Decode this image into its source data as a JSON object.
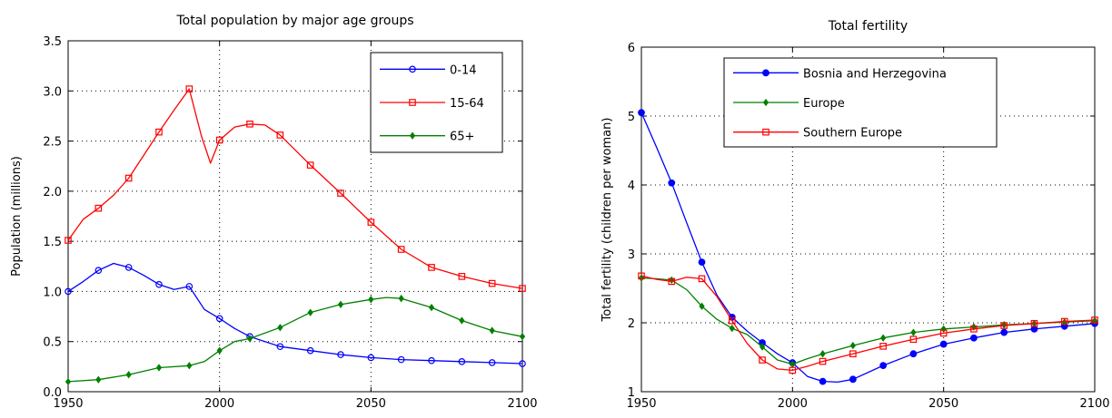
{
  "chart_data": [
    {
      "type": "line",
      "title": "Total population by major age groups",
      "ylabel": "Population (millions)",
      "xlabel": "",
      "xlim": [
        1950,
        2100
      ],
      "ylim": [
        0.0,
        3.5
      ],
      "xticks": [
        1950,
        2000,
        2050,
        2100
      ],
      "xtick_labels": [
        "1950",
        "2000",
        "2050",
        "2100"
      ],
      "yticks": [
        0,
        0.5,
        1.0,
        1.5,
        2.0,
        2.5,
        3.0,
        3.5
      ],
      "ytick_labels": [
        "0.0",
        "0.5",
        "1.0",
        "1.5",
        "2.0",
        "2.5",
        "3.0",
        "3.5"
      ],
      "grid": true,
      "legend_position": "top-right",
      "series": [
        {
          "name": "0-14",
          "color": "#0000ff",
          "marker": "circle",
          "x": [
            1950,
            1955,
            1960,
            1965,
            1970,
            1975,
            1980,
            1985,
            1990,
            1995,
            2000,
            2005,
            2010,
            2020,
            2030,
            2040,
            2050,
            2060,
            2070,
            2080,
            2090,
            2100
          ],
          "values": [
            1.0,
            1.1,
            1.21,
            1.28,
            1.24,
            1.16,
            1.07,
            1.02,
            1.05,
            0.82,
            0.73,
            0.63,
            0.55,
            0.45,
            0.41,
            0.37,
            0.34,
            0.32,
            0.31,
            0.3,
            0.29,
            0.28
          ],
          "marker_x": [
            1950,
            1960,
            1970,
            1980,
            1990,
            2000,
            2010,
            2020,
            2030,
            2040,
            2050,
            2060,
            2070,
            2080,
            2090,
            2100
          ]
        },
        {
          "name": "15-64",
          "color": "#ff0000",
          "marker": "square",
          "x": [
            1950,
            1955,
            1960,
            1965,
            1970,
            1975,
            1980,
            1985,
            1990,
            1994,
            1997,
            2000,
            2005,
            2010,
            2015,
            2020,
            2030,
            2040,
            2050,
            2060,
            2070,
            2080,
            2090,
            2100
          ],
          "values": [
            1.51,
            1.72,
            1.83,
            1.96,
            2.13,
            2.36,
            2.59,
            2.81,
            3.02,
            2.55,
            2.28,
            2.51,
            2.64,
            2.67,
            2.66,
            2.56,
            2.26,
            1.98,
            1.69,
            1.42,
            1.24,
            1.15,
            1.08,
            1.03
          ],
          "marker_x": [
            1950,
            1960,
            1970,
            1980,
            1990,
            2000,
            2010,
            2020,
            2030,
            2040,
            2050,
            2060,
            2070,
            2080,
            2090,
            2100
          ]
        },
        {
          "name": "65+",
          "color": "#008000",
          "marker": "diamond",
          "x": [
            1950,
            1960,
            1970,
            1980,
            1990,
            1995,
            2000,
            2005,
            2010,
            2020,
            2030,
            2040,
            2050,
            2055,
            2060,
            2070,
            2080,
            2090,
            2100
          ],
          "values": [
            0.1,
            0.12,
            0.17,
            0.24,
            0.26,
            0.3,
            0.41,
            0.5,
            0.53,
            0.64,
            0.79,
            0.87,
            0.92,
            0.94,
            0.93,
            0.84,
            0.71,
            0.61,
            0.55
          ],
          "marker_x": [
            1950,
            1960,
            1970,
            1980,
            1990,
            2000,
            2010,
            2020,
            2030,
            2040,
            2050,
            2060,
            2070,
            2080,
            2090,
            2100
          ]
        }
      ]
    },
    {
      "type": "line",
      "title": "Total fertility",
      "ylabel": "Total fertility (children per woman)",
      "xlabel": "",
      "xlim": [
        1950,
        2100
      ],
      "ylim": [
        1,
        6
      ],
      "xticks": [
        1950,
        2000,
        2050,
        2100
      ],
      "xtick_labels": [
        "1950",
        "2000",
        "2050",
        "2100"
      ],
      "yticks": [
        1,
        2,
        3,
        4,
        5,
        6
      ],
      "ytick_labels": [
        "1",
        "2",
        "3",
        "4",
        "5",
        "6"
      ],
      "grid": true,
      "legend_position": "top-center",
      "series": [
        {
          "name": "Bosnia and Herzegovina",
          "color": "#0000ff",
          "marker": "filled-circle",
          "x": [
            1950,
            1955,
            1960,
            1965,
            1970,
            1975,
            1980,
            1985,
            1990,
            1995,
            2000,
            2005,
            2010,
            2015,
            2020,
            2030,
            2040,
            2050,
            2060,
            2070,
            2080,
            2090,
            2100
          ],
          "values": [
            5.05,
            4.55,
            4.03,
            3.45,
            2.88,
            2.4,
            2.08,
            1.88,
            1.71,
            1.55,
            1.42,
            1.22,
            1.15,
            1.14,
            1.18,
            1.38,
            1.55,
            1.69,
            1.78,
            1.86,
            1.91,
            1.95,
            1.99
          ],
          "marker_x": [
            1950,
            1960,
            1970,
            1980,
            1990,
            2000,
            2010,
            2020,
            2030,
            2040,
            2050,
            2060,
            2070,
            2080,
            2090,
            2100
          ]
        },
        {
          "name": "Europe",
          "color": "#008000",
          "marker": "diamond",
          "x": [
            1950,
            1955,
            1960,
            1965,
            1970,
            1975,
            1980,
            1985,
            1990,
            1995,
            2000,
            2005,
            2010,
            2020,
            2030,
            2040,
            2050,
            2060,
            2070,
            2080,
            2090,
            2100
          ],
          "values": [
            2.65,
            2.64,
            2.62,
            2.48,
            2.24,
            2.05,
            1.92,
            1.83,
            1.65,
            1.46,
            1.4,
            1.48,
            1.55,
            1.67,
            1.78,
            1.86,
            1.91,
            1.94,
            1.97,
            1.99,
            2.01,
            2.03
          ],
          "marker_x": [
            1950,
            1960,
            1970,
            1980,
            1990,
            2000,
            2010,
            2020,
            2030,
            2040,
            2050,
            2060,
            2070,
            2080,
            2090,
            2100
          ]
        },
        {
          "name": "Southern Europe",
          "color": "#ff0000",
          "marker": "square",
          "x": [
            1950,
            1955,
            1960,
            1965,
            1970,
            1975,
            1980,
            1985,
            1990,
            1995,
            2000,
            2005,
            2010,
            2020,
            2030,
            2040,
            2050,
            2060,
            2070,
            2080,
            2090,
            2100
          ],
          "values": [
            2.68,
            2.63,
            2.6,
            2.66,
            2.64,
            2.38,
            2.03,
            1.7,
            1.46,
            1.33,
            1.31,
            1.37,
            1.44,
            1.55,
            1.66,
            1.76,
            1.85,
            1.91,
            1.96,
            1.99,
            2.02,
            2.04
          ],
          "marker_x": [
            1950,
            1960,
            1970,
            1980,
            1990,
            2000,
            2010,
            2020,
            2030,
            2040,
            2050,
            2060,
            2070,
            2080,
            2090,
            2100
          ]
        }
      ]
    }
  ]
}
